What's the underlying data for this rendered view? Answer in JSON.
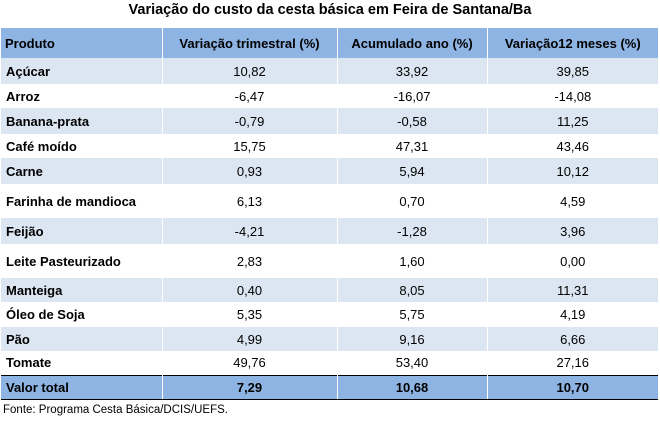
{
  "title": "Variação do custo da cesta básica em Feira de Santana/Ba",
  "headers": [
    "Produto",
    "Variação trimestral (%)",
    "Acumulado ano (%)",
    "Variação12 meses (%)"
  ],
  "rows": [
    [
      "Açúcar",
      "10,82",
      "33,92",
      "39,85"
    ],
    [
      "Arroz",
      "-6,47",
      "-16,07",
      "-14,08"
    ],
    [
      "Banana-prata",
      "-0,79",
      "-0,58",
      "11,25"
    ],
    [
      "Café moído",
      "15,75",
      "47,31",
      "43,46"
    ],
    [
      "Carne",
      "0,93",
      "5,94",
      "10,12"
    ],
    [
      "Farinha de mandioca",
      "6,13",
      "0,70",
      "4,59"
    ],
    [
      "Feijão",
      "-4,21",
      "-1,28",
      "3,96"
    ],
    [
      "Leite Pasteurizado",
      "2,83",
      "1,60",
      "0,00"
    ],
    [
      "Manteiga",
      "0,40",
      "8,05",
      "11,31"
    ],
    [
      "Óleo de Soja",
      "5,35",
      "5,75",
      "4,19"
    ],
    [
      "Pão",
      "4,99",
      "9,16",
      "6,66"
    ],
    [
      "Tomate",
      "49,76",
      "53,40",
      "27,16"
    ]
  ],
  "total": [
    "Valor total",
    "7,29",
    "10,68",
    "10,70"
  ],
  "source": "Fonte: Programa Cesta Básica/DCIS/UEFS.",
  "colors": {
    "header": "#8eb4e3",
    "shaded_row": "#dce6f2",
    "plain_row": "#ffffff"
  }
}
